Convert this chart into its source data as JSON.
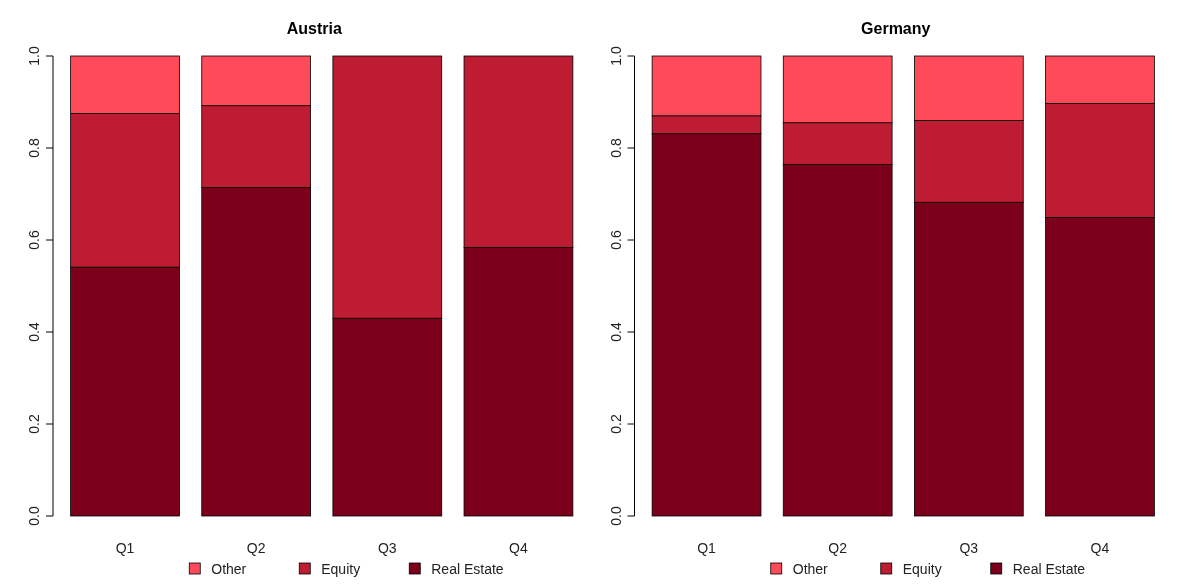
{
  "chart_data": [
    {
      "type": "bar",
      "title": "Austria",
      "stacked": true,
      "categories": [
        "Q1",
        "Q2",
        "Q3",
        "Q4"
      ],
      "series": [
        {
          "name": "Real Estate",
          "color": "#7d001a",
          "values": [
            0.541,
            0.714,
            0.43,
            0.584
          ]
        },
        {
          "name": "Equity",
          "color": "#be1c32",
          "values": [
            0.334,
            0.178,
            0.57,
            0.416
          ]
        },
        {
          "name": "Other",
          "color": "#ff4a5a",
          "values": [
            0.125,
            0.108,
            0,
            0
          ]
        }
      ],
      "ylim": [
        0,
        1
      ],
      "yticks": [
        {
          "value": 0,
          "label": "0.0"
        },
        {
          "value": 0.2,
          "label": "0.2"
        },
        {
          "value": 0.4,
          "label": "0.4"
        },
        {
          "value": 0.6,
          "label": "0.6"
        },
        {
          "value": 0.8,
          "label": "0.8"
        },
        {
          "value": 1,
          "label": "1.0"
        }
      ],
      "legend": "bottom",
      "grid": false
    },
    {
      "type": "bar",
      "title": "Germany",
      "stacked": true,
      "categories": [
        "Q1",
        "Q2",
        "Q3",
        "Q4"
      ],
      "series": [
        {
          "name": "Real Estate",
          "color": "#7d001a",
          "values": [
            0.831,
            0.764,
            0.682,
            0.649
          ]
        },
        {
          "name": "Equity",
          "color": "#be1c32",
          "values": [
            0.039,
            0.091,
            0.178,
            0.248
          ]
        },
        {
          "name": "Other",
          "color": "#ff4a5a",
          "values": [
            0.13,
            0.145,
            0.14,
            0.103
          ]
        }
      ],
      "ylim": [
        0,
        1
      ],
      "yticks": [
        {
          "value": 0,
          "label": "0.0"
        },
        {
          "value": 0.2,
          "label": "0.2"
        },
        {
          "value": 0.4,
          "label": "0.4"
        },
        {
          "value": 0.6,
          "label": "0.6"
        },
        {
          "value": 0.8,
          "label": "0.8"
        },
        {
          "value": 1,
          "label": "1.0"
        }
      ],
      "legend": "bottom",
      "grid": false
    }
  ]
}
